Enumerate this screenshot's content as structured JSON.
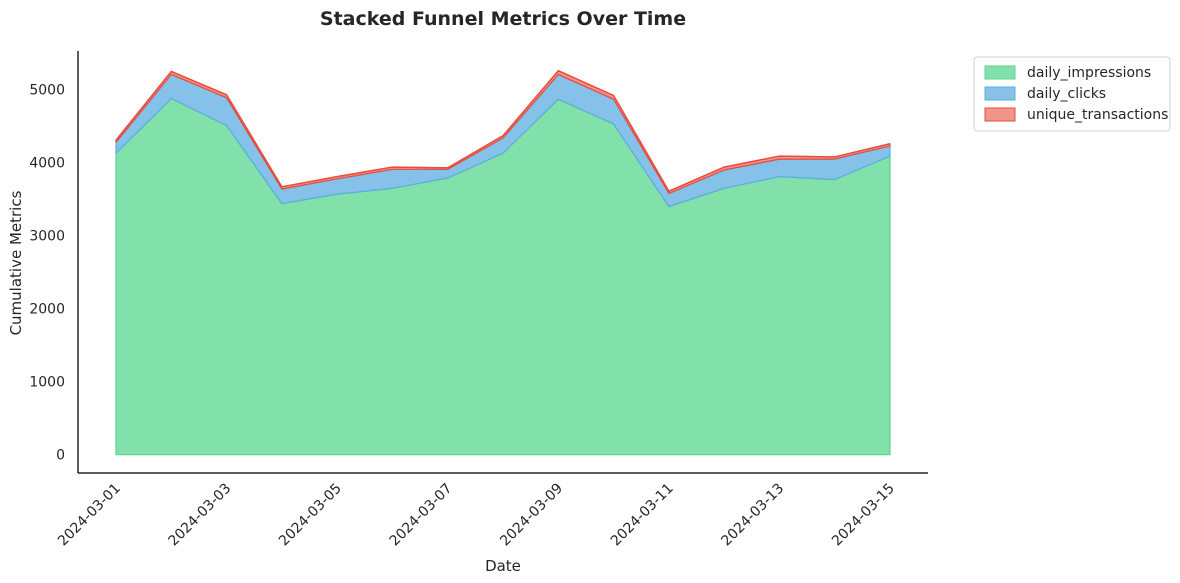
{
  "chart_data": {
    "type": "area",
    "stacked": true,
    "title": "Stacked Funnel Metrics Over Time",
    "xlabel": "Date",
    "ylabel": "Cumulative Metrics",
    "x": [
      "2024-03-01",
      "2024-03-02",
      "2024-03-03",
      "2024-03-04",
      "2024-03-05",
      "2024-03-06",
      "2024-03-07",
      "2024-03-08",
      "2024-03-09",
      "2024-03-10",
      "2024-03-11",
      "2024-03-12",
      "2024-03-13",
      "2024-03-14",
      "2024-03-15"
    ],
    "x_plot_range": [
      "2024-03-01",
      "2024-03-15"
    ],
    "x_ticks": [
      "2024-03-01",
      "2024-03-03",
      "2024-03-05",
      "2024-03-07",
      "2024-03-09",
      "2024-03-11",
      "2024-03-13",
      "2024-03-15"
    ],
    "y_ticks": [
      0,
      1000,
      2000,
      3000,
      4000,
      5000
    ],
    "ylim": [
      -250,
      5530
    ],
    "grid": false,
    "legend_placement": "outside-top-right",
    "series": [
      {
        "name": "daily_impressions",
        "color": "#82e0aa",
        "edge_color": "#58d68d",
        "values": [
          4130,
          4880,
          4510,
          3440,
          3570,
          3650,
          3790,
          4130,
          4870,
          4530,
          3400,
          3650,
          3810,
          3770,
          4090
        ]
      },
      {
        "name": "daily_clicks",
        "color": "#85c1e9",
        "edge_color": "#5dade2",
        "values": [
          150,
          330,
          380,
          200,
          210,
          260,
          120,
          210,
          340,
          340,
          180,
          250,
          240,
          280,
          140
        ]
      },
      {
        "name": "unique_transactions",
        "color": "#f1948a",
        "edge_color": "#e74c3c",
        "values": [
          30,
          40,
          40,
          30,
          30,
          30,
          20,
          30,
          50,
          50,
          30,
          40,
          40,
          30,
          30
        ]
      }
    ]
  }
}
